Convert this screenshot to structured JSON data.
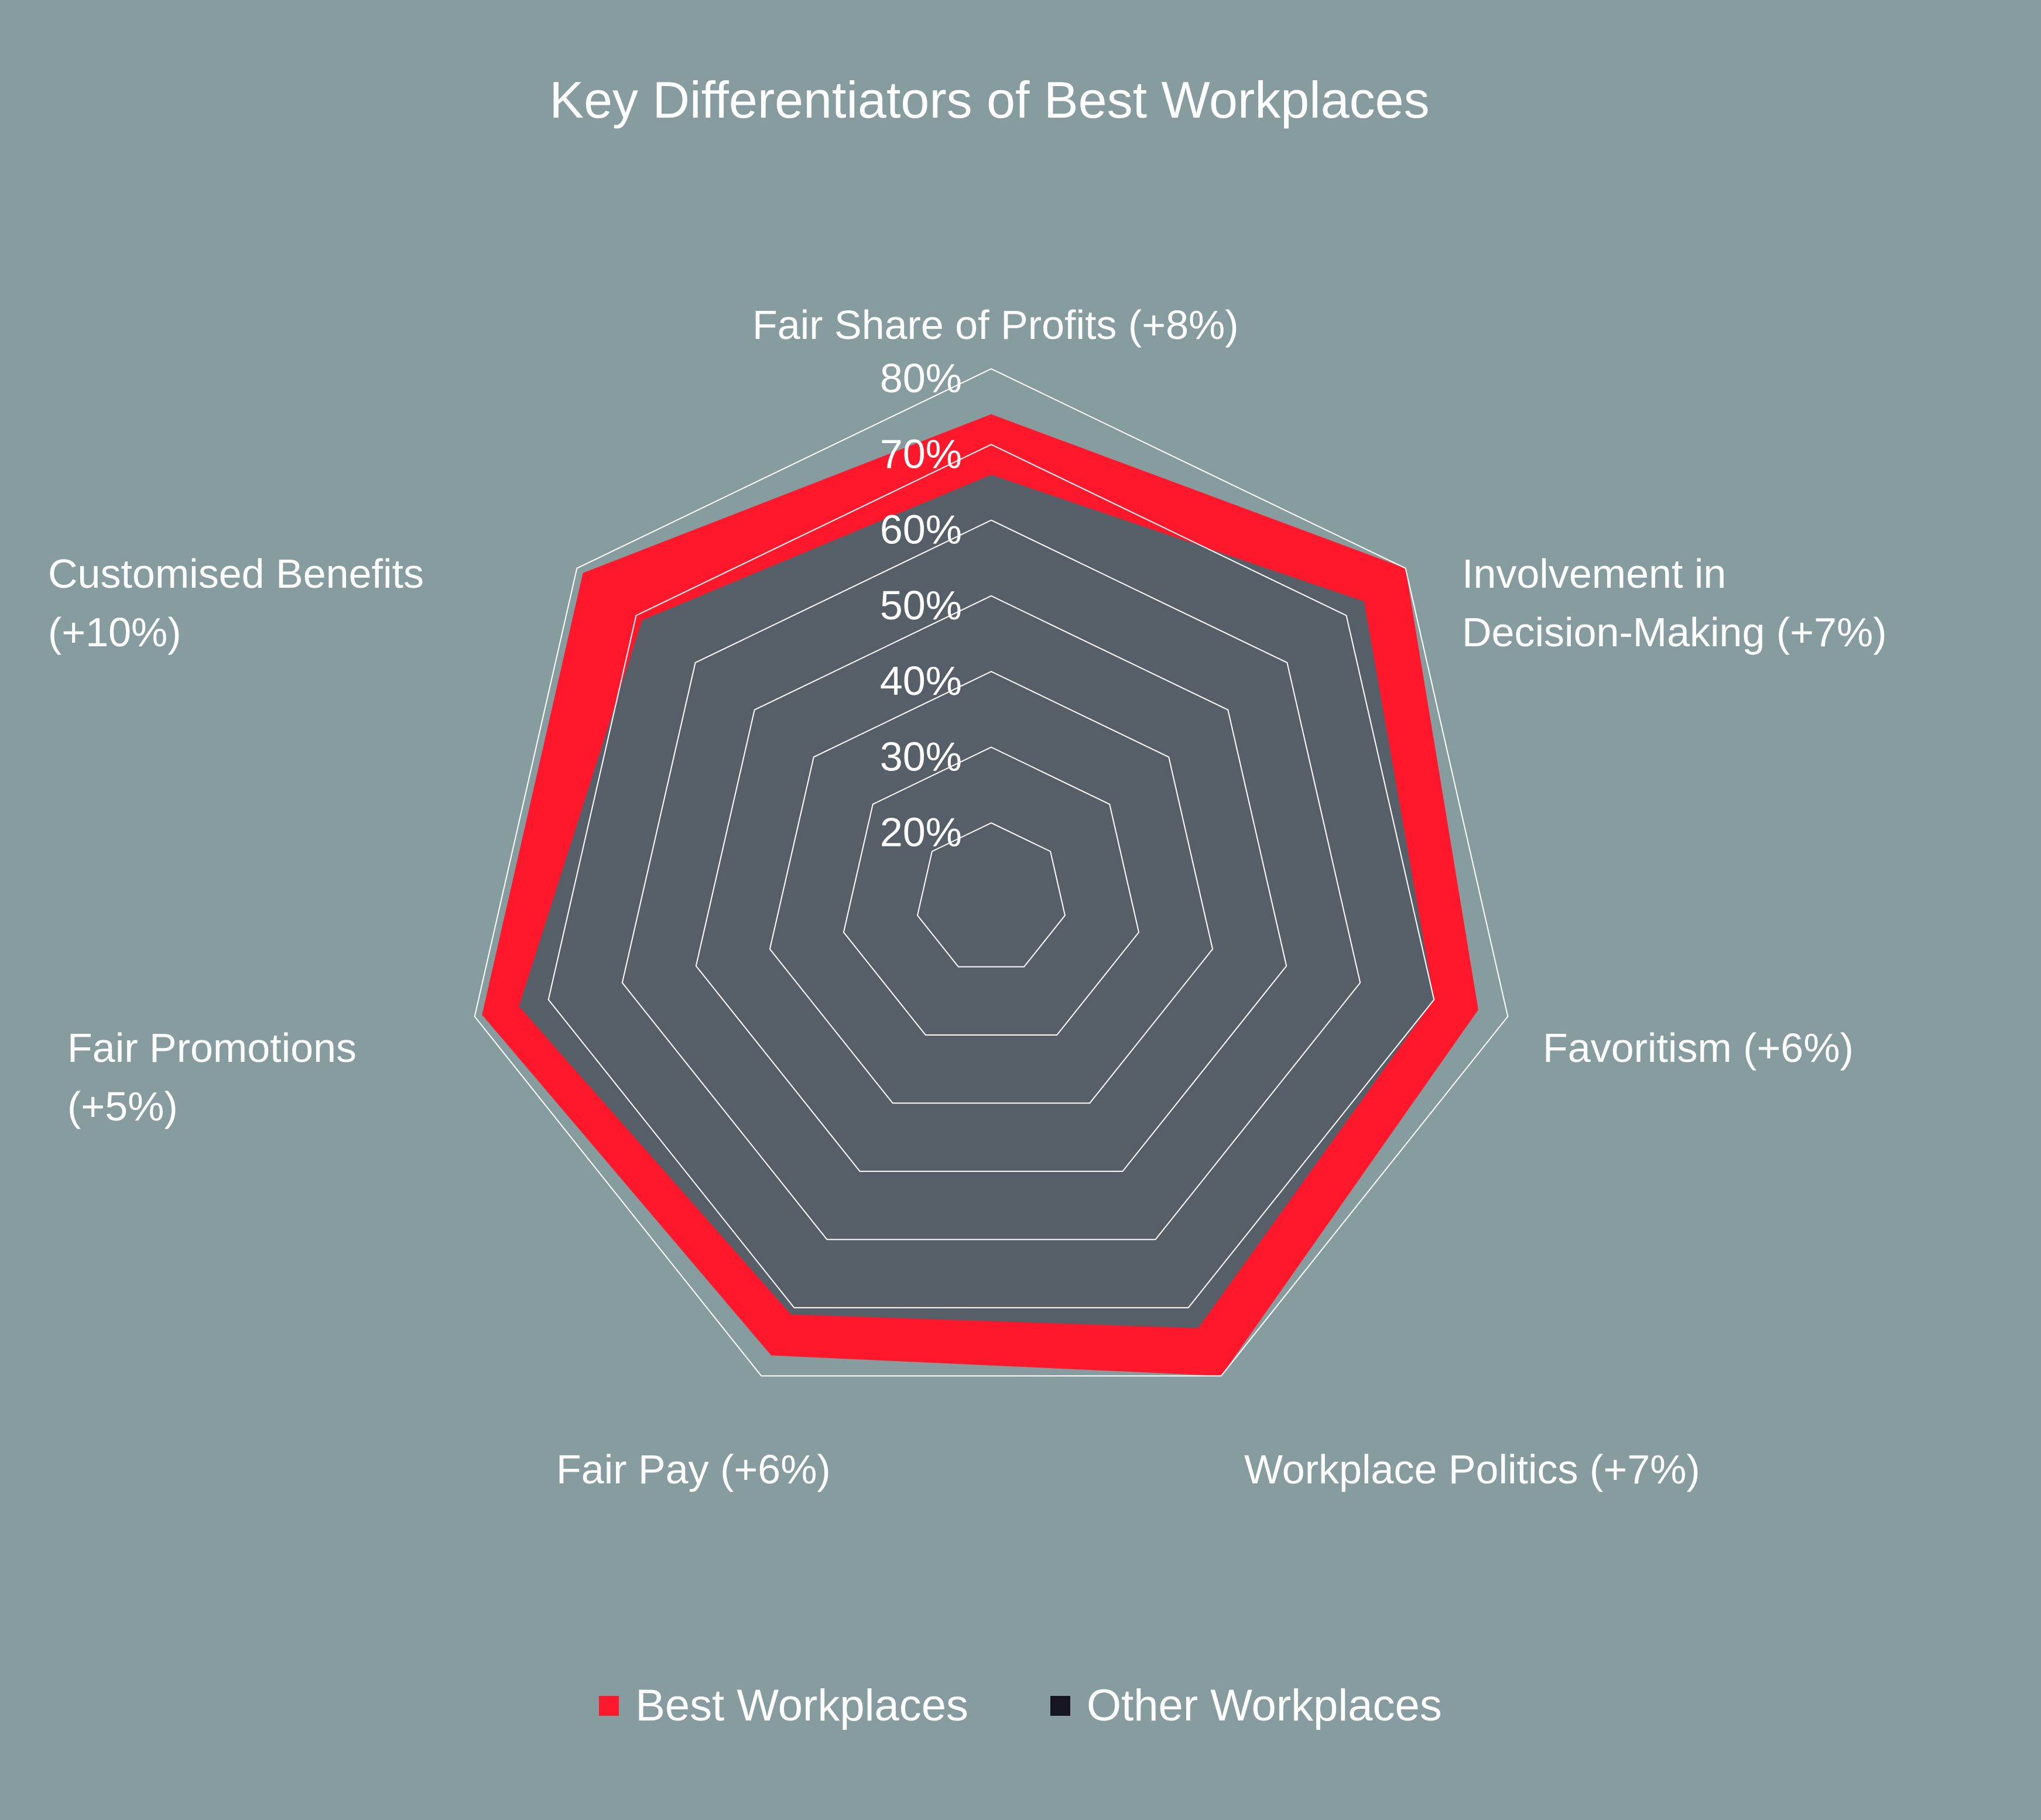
{
  "chart_data": {
    "type": "radar",
    "title": "Key Differentiators of Best Workplaces",
    "categories": [
      "Fair Share of Profits (+8%)",
      "Involvement in\nDecision-Making (+7%)",
      "Favoritism (+6%)",
      "Workplace Politics (+7%)",
      "Fair Pay (+6%)",
      "Fair Promotions\n(+5%)",
      "Customised Benefits\n(+10%)"
    ],
    "series": [
      {
        "name": "Best Workplaces",
        "color": "#ff182b",
        "values": [
          74,
          80,
          76,
          80,
          77,
          79,
          79
        ]
      },
      {
        "name": "Other Workplaces",
        "color": "#565e68",
        "values": [
          66,
          73,
          70,
          73,
          71,
          74,
          69
        ]
      }
    ],
    "radial_ticks": [
      "20%",
      "30%",
      "40%",
      "50%",
      "60%",
      "70%",
      "80%"
    ],
    "radial_range": [
      10,
      80
    ],
    "legend_position": "bottom"
  }
}
